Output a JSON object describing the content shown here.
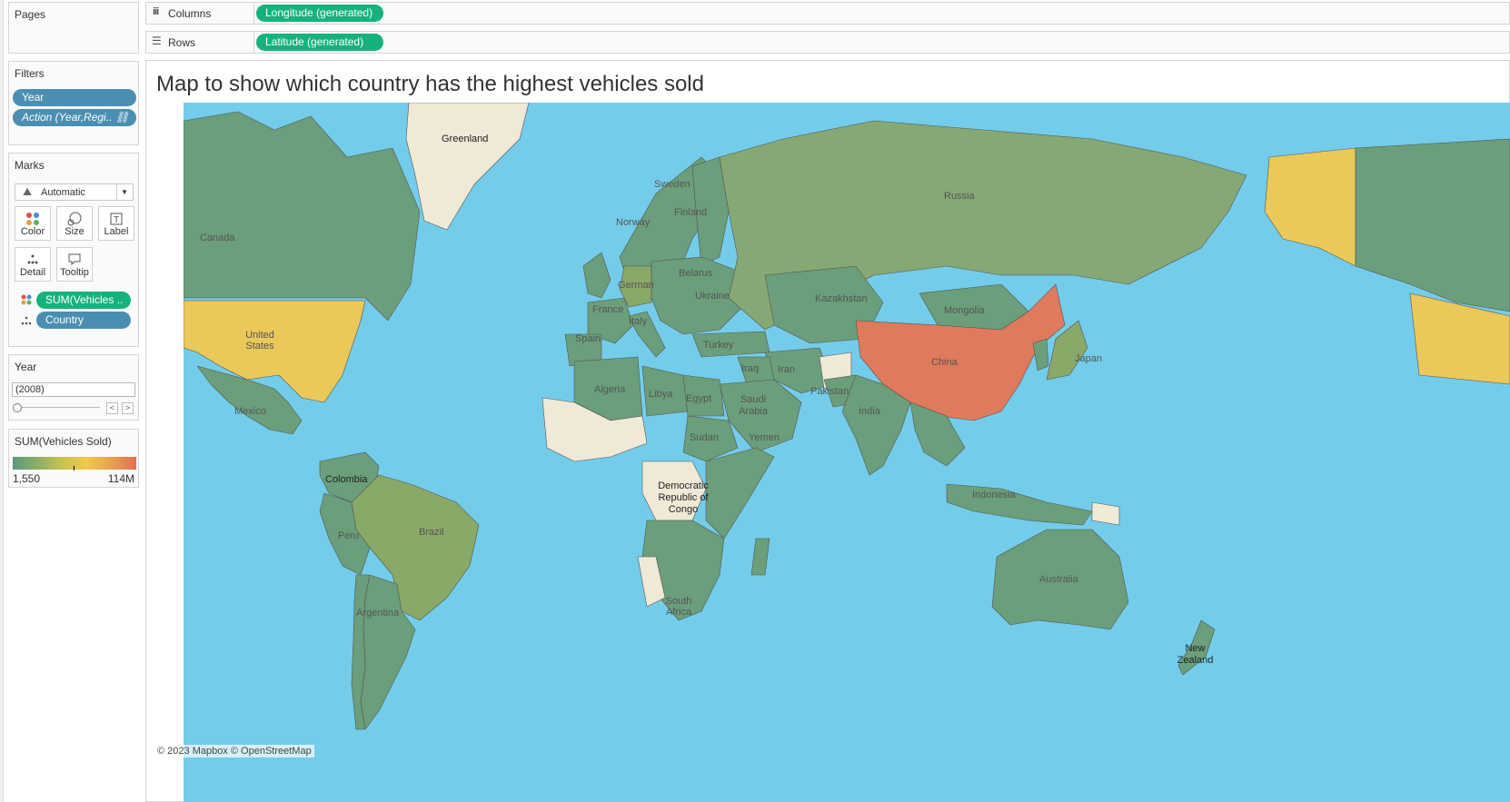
{
  "left_panel": {
    "pages": {
      "title": "Pages"
    },
    "filters": {
      "title": "Filters",
      "items": [
        "Year",
        "Action (Year,Regi.."
      ]
    },
    "marks": {
      "title": "Marks",
      "mark_type": "Automatic",
      "buttons": [
        "Color",
        "Size",
        "Label",
        "Detail",
        "Tooltip"
      ],
      "fields": [
        "SUM(Vehicles ..",
        "Country"
      ]
    },
    "year_filter": {
      "title": "Year",
      "value": "(2008)"
    },
    "legend": {
      "title": "SUM(Vehicles Sold)",
      "min": "1,550",
      "max": "114M",
      "colors": [
        "#5a9a7a",
        "#b8c150",
        "#f0c850",
        "#e07050"
      ]
    }
  },
  "shelves": {
    "columns": {
      "label": "Columns",
      "pill": "Longitude (generated)"
    },
    "rows": {
      "label": "Rows",
      "pill": "Latitude (generated)"
    }
  },
  "viz": {
    "title": "Map to show which country has the highest vehicles sold",
    "map_labels": [
      "Greenland",
      "Sweden",
      "Finland",
      "Norway",
      "Russia",
      "Canada",
      "Belarus",
      "German",
      "Ukraine",
      "France",
      "Italy",
      "Kazakhstan",
      "Mongolia",
      "United States",
      "Spain",
      "Turkey",
      "Iraq",
      "Iran",
      "China",
      "Algeria",
      "Libya",
      "Egypt",
      "Saudi Arabia",
      "Pakistan",
      "Mexico",
      "India",
      "Japan",
      "Sudan",
      "Yemen",
      "Colombia",
      "Democratic Republic of Congo",
      "Indonesia",
      "Brazil",
      "Peru",
      "Australia",
      "South Africa",
      "Argentina",
      "New Zealand"
    ],
    "attribution": "© 2023 Mapbox © OpenStreetMap",
    "colors": {
      "ocean": "#73cdea",
      "low": "#6b9e7a",
      "mid": "#eac85a",
      "high": "#df7a5c",
      "nodata": "#efe9d6"
    }
  }
}
